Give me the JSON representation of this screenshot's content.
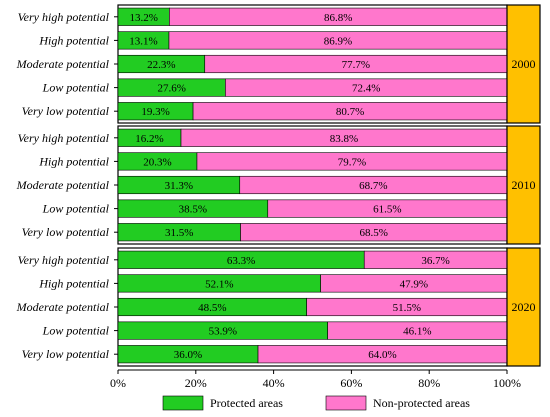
{
  "chart_data": {
    "type": "bar",
    "orientation": "horizontal-stacked-100",
    "categories": [
      "Very high potential",
      "High potential",
      "Moderate potential",
      "Low potential",
      "Very low potential"
    ],
    "panels": [
      {
        "year": "2000",
        "series": [
          {
            "name": "Protected areas",
            "values": [
              13.2,
              13.1,
              22.3,
              27.6,
              19.3
            ],
            "labels": [
              "13.2%",
              "13.1%",
              "22.3%",
              "27.6%",
              "19.3%"
            ]
          },
          {
            "name": "Non-protected areas",
            "values": [
              86.8,
              86.9,
              77.7,
              72.4,
              80.7
            ],
            "labels": [
              "86.8%",
              "86.9%",
              "77.7%",
              "72.4%",
              "80.7%"
            ]
          }
        ]
      },
      {
        "year": "2010",
        "series": [
          {
            "name": "Protected areas",
            "values": [
              16.2,
              20.3,
              31.3,
              38.5,
              31.5
            ],
            "labels": [
              "16.2%",
              "20.3%",
              "31.3%",
              "38.5%",
              "31.5%"
            ]
          },
          {
            "name": "Non-protected areas",
            "values": [
              83.8,
              79.7,
              68.7,
              61.5,
              68.5
            ],
            "labels": [
              "83.8%",
              "79.7%",
              "68.7%",
              "61.5%",
              "68.5%"
            ]
          }
        ]
      },
      {
        "year": "2020",
        "series": [
          {
            "name": "Protected areas",
            "values": [
              63.3,
              52.1,
              48.5,
              53.9,
              36.0
            ],
            "labels": [
              "63.3%",
              "52.1%",
              "48.5%",
              "53.9%",
              "36.0%"
            ]
          },
          {
            "name": "Non-protected areas",
            "values": [
              36.7,
              47.9,
              51.5,
              46.1,
              64.0
            ],
            "labels": [
              "36.7%",
              "47.9%",
              "51.5%",
              "46.1%",
              "64.0%"
            ]
          }
        ]
      }
    ],
    "x_ticks": [
      "0%",
      "20%",
      "40%",
      "60%",
      "80%",
      "100%"
    ],
    "xlim": [
      0,
      100
    ],
    "legend": {
      "position": "bottom",
      "entries": [
        "Protected areas",
        "Non-protected areas"
      ]
    },
    "grid": false,
    "colors": {
      "protected": "#22cc22",
      "non_protected": "#ff77cc",
      "year_band": "#ffc000",
      "outline": "#000000"
    }
  }
}
